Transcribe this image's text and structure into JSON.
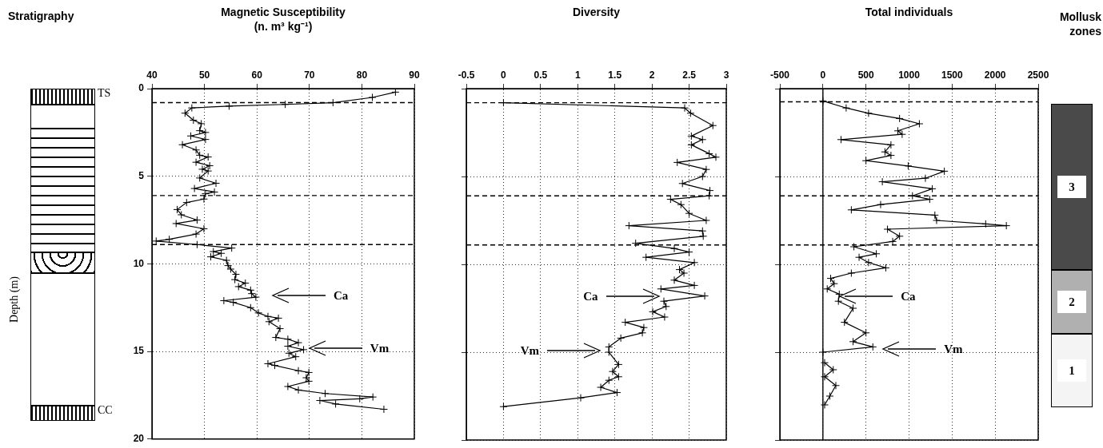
{
  "chart_data": [
    {
      "type": "line",
      "title": "Magnetic Susceptibility",
      "subtitle": "(n. m³ kg⁻¹)",
      "ylabel": "Depth (m)",
      "xlim": [
        40,
        90
      ],
      "xticks": [
        40,
        50,
        60,
        70,
        80,
        90
      ],
      "ylim": [
        20,
        0
      ],
      "yticks": [
        0,
        5,
        10,
        15,
        20
      ],
      "grid": true,
      "marker": "cross",
      "line_style": "solid",
      "series": [
        {
          "type": "line",
          "color": "#000000",
          "x": [
            86.4,
            82,
            74.5,
            65.4,
            54.7,
            47.6,
            46.3,
            47.9,
            49.4,
            49.1,
            50.2,
            47.4,
            50.2,
            45.8,
            48.4,
            49.1,
            50.7,
            48.4,
            51,
            49.6,
            50.7,
            49.1,
            52.2,
            48.1,
            51.9,
            50.2,
            49.9,
            46.6,
            44.8,
            45.6,
            48.6,
            44.6,
            49.9,
            48.4,
            43.3,
            40.8,
            48.6,
            55.2,
            51.7,
            53.2,
            51.2,
            54.2,
            54.5,
            55,
            56,
            55.8,
            57.8,
            56.5,
            58.8,
            59,
            59.8,
            53.7,
            55.5,
            58.8,
            60.3,
            62.1,
            64.1,
            62.3,
            64.4,
            63.6,
            65.9,
            67.9,
            65.9,
            68.9,
            66.1,
            67.4,
            62.1,
            63.4,
            67.9,
            69.9,
            69.4,
            69.9,
            65.9,
            67.9,
            73,
            82.1,
            79.6,
            72,
            75,
            84.2
          ],
          "values": [
            0.2,
            0.5,
            0.8,
            0.9,
            1,
            1.1,
            1.4,
            1.8,
            2,
            2.4,
            2.5,
            2.7,
            2.9,
            3.2,
            3.5,
            3.8,
            3.9,
            4.2,
            4.4,
            4.6,
            4.7,
            5.1,
            5.4,
            5.7,
            5.9,
            6,
            6.3,
            6.5,
            6.9,
            7.2,
            7.5,
            7.7,
            8,
            8.3,
            8.6,
            8.7,
            8.9,
            9.1,
            9.3,
            9.4,
            9.6,
            9.8,
            10.1,
            10.3,
            10.6,
            10.9,
            11.1,
            11.3,
            11.5,
            11.7,
            11.9,
            12.1,
            12.2,
            12.5,
            12.8,
            13,
            13.1,
            13.3,
            13.7,
            14.2,
            14.3,
            14.5,
            14.7,
            14.9,
            15.1,
            15.3,
            15.7,
            15.8,
            16.1,
            16.2,
            16.5,
            16.7,
            17,
            17.2,
            17.4,
            17.6,
            17.7,
            17.8,
            18,
            18.3
          ]
        }
      ],
      "ref_lines": [
        {
          "axis": "y",
          "value": 0.8,
          "line_style": "dashed"
        },
        {
          "axis": "y",
          "value": 6.1,
          "line_style": "dashed"
        },
        {
          "axis": "y",
          "value": 8.9,
          "line_style": "dashed"
        }
      ],
      "annotations": [
        "Stratigraphy",
        "TS",
        "CC",
        "Ca",
        "Vm"
      ]
    },
    {
      "type": "line",
      "title": "Diversity",
      "xlim": [
        -0.5,
        3
      ],
      "xticks": [
        -0.5,
        0,
        0.5,
        1,
        1.5,
        2,
        2.5,
        3
      ],
      "ylim": [
        20,
        0
      ],
      "yticks": [
        0,
        5,
        10,
        15,
        20
      ],
      "grid": true,
      "marker": "cross",
      "line_style": "solid",
      "tick_labels": "x",
      "series": [
        {
          "type": "line",
          "color": "#000000",
          "x": [
            0,
            2.44,
            2.52,
            2.82,
            2.53,
            2.68,
            2.53,
            2.77,
            2.86,
            2.34,
            2.73,
            2.68,
            2.41,
            2.78,
            2.77,
            2.25,
            2.39,
            2.5,
            2.73,
            1.69,
            2.68,
            2.69,
            1.78,
            2.3,
            2.5,
            1.92,
            2.57,
            2.37,
            2.43,
            2.3,
            2.57,
            2.12,
            2.71,
            2.16,
            2.19,
            2.01,
            2.17,
            1.64,
            1.89,
            1.87,
            1.58,
            1.42,
            1.42,
            1.55,
            1.47,
            1.55,
            1.42,
            1.31,
            1.53,
            1.04,
            0
          ],
          "values": [
            0.8,
            1.1,
            1.4,
            2.1,
            2.7,
            2.9,
            3.2,
            3.7,
            3.9,
            4.2,
            4.6,
            5,
            5.4,
            5.8,
            6.1,
            6.3,
            6.6,
            7.1,
            7.5,
            7.8,
            8.1,
            8.4,
            8.8,
            9.1,
            9.3,
            9.6,
            9.9,
            10.3,
            10.5,
            10.9,
            11.2,
            11.4,
            11.8,
            12.1,
            12.4,
            12.7,
            13,
            13.3,
            13.6,
            13.9,
            14.2,
            14.7,
            15,
            15.7,
            16.1,
            16.4,
            16.6,
            17,
            17.3,
            17.6,
            18.1
          ]
        }
      ],
      "ref_lines": [
        {
          "axis": "y",
          "value": 0.8,
          "line_style": "dashed"
        },
        {
          "axis": "y",
          "value": 6.1,
          "line_style": "dashed"
        },
        {
          "axis": "y",
          "value": 8.9,
          "line_style": "dashed"
        }
      ],
      "annotations": [
        "Ca",
        "Vm"
      ]
    },
    {
      "type": "line",
      "title": "Total individuals",
      "xlim": [
        -500,
        2500
      ],
      "xticks": [
        -500,
        0,
        500,
        1000,
        1500,
        2000,
        2500
      ],
      "ylim": [
        20,
        0
      ],
      "yticks": [
        0,
        5,
        10,
        15,
        20
      ],
      "grid": true,
      "marker": "cross",
      "line_style": "solid",
      "tick_labels": "x",
      "series": [
        {
          "type": "line",
          "color": "#000000",
          "x": [
            0,
            270,
            530,
            890,
            1120,
            870,
            920,
            210,
            790,
            720,
            790,
            500,
            990,
            1410,
            1190,
            690,
            1270,
            1040,
            1240,
            670,
            330,
            1300,
            1320,
            1890,
            2130,
            750,
            890,
            810,
            360,
            620,
            420,
            530,
            730,
            330,
            90,
            130,
            50,
            190,
            180,
            350,
            250,
            500,
            350,
            580,
            0,
            null,
            20,
            120,
            20,
            150,
            80,
            20
          ],
          "values": [
            0.7,
            1.1,
            1.4,
            1.7,
            2,
            2.4,
            2.6,
            2.9,
            3.2,
            3.6,
            3.8,
            4.1,
            4.4,
            4.7,
            5.1,
            5.3,
            5.7,
            6.1,
            6.3,
            6.6,
            6.9,
            7.2,
            7.5,
            7.7,
            7.8,
            8,
            8.4,
            8.7,
            9,
            9.4,
            9.6,
            9.9,
            10.2,
            10.5,
            10.8,
            11.1,
            11.4,
            11.7,
            12.1,
            12.5,
            13.3,
            13.9,
            14.4,
            14.7,
            15,
            null,
            15.6,
            16,
            16.4,
            16.9,
            17.5,
            18
          ]
        }
      ],
      "ref_lines": [
        {
          "axis": "x",
          "value": 0,
          "line_style": "solid"
        },
        {
          "axis": "y",
          "value": 0.75,
          "line_style": "dashed"
        },
        {
          "axis": "y",
          "value": 6.1,
          "line_style": "dashed"
        },
        {
          "axis": "y",
          "value": 8.9,
          "line_style": "dashed"
        }
      ],
      "annotations": [
        "Ca",
        "Vm"
      ]
    },
    {
      "type": "other",
      "title": "Mollusk zones",
      "annotations": [
        "3",
        "2",
        "1"
      ]
    }
  ]
}
